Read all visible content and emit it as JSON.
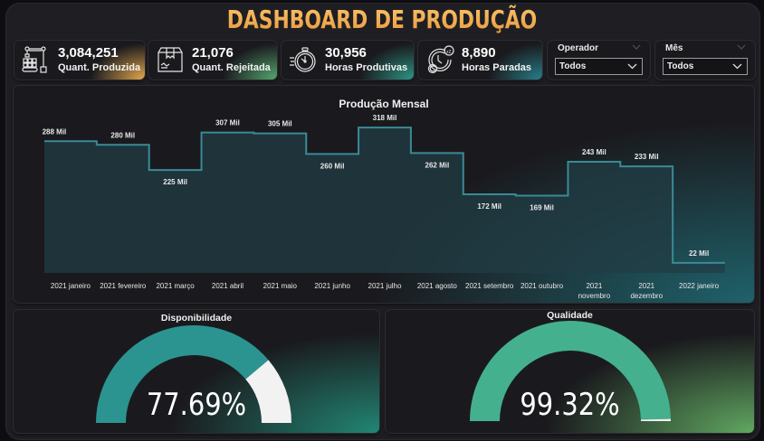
{
  "header": {
    "title": "DASHBOARD DE PRODUÇÃO"
  },
  "kpis": [
    {
      "value": "3,084,251",
      "label": "Quant. Produzida",
      "icon": "robot-arm-icon",
      "accent": "#f0b050"
    },
    {
      "value": "21,076",
      "label": "Quant. Rejeitada",
      "icon": "box-icon",
      "accent": "#5cb87a"
    },
    {
      "value": "30,956",
      "label": "Horas Produtivas",
      "icon": "stopwatch-icon",
      "accent": "#2fa490"
    },
    {
      "value": "8,890",
      "label": "Horas Paradas",
      "icon": "clock-sleep-icon",
      "accent": "#2a8a96"
    }
  ],
  "filters": [
    {
      "label": "Operador",
      "selected": "Todos"
    },
    {
      "label": "Mês",
      "selected": "Todos"
    }
  ],
  "chart_data": {
    "type": "area",
    "title": "Produção Mensal",
    "step": true,
    "categories": [
      "2021 janeiro",
      "2021 fevereiro",
      "2021 março",
      "2021 abril",
      "2021 maio",
      "2021 junho",
      "2021 julho",
      "2021 agosto",
      "2021 setembro",
      "2021 outubro",
      "2021 novembro",
      "2021 dezembro",
      "2022 janeiro"
    ],
    "values": [
      288000,
      280000,
      225000,
      307000,
      305000,
      260000,
      318000,
      262000,
      172000,
      169000,
      243000,
      233000,
      22000
    ],
    "data_labels": [
      "288 Mil",
      "280 Mil",
      "225 Mil",
      "307 Mil",
      "305 Mil",
      "260 Mil",
      "318 Mil",
      "262 Mil",
      "172 Mil",
      "169 Mil",
      "243 Mil",
      "233 Mil",
      "22 Mil"
    ],
    "xlabel": "",
    "ylabel": "",
    "grid": false,
    "legend": "none",
    "line_color": "#3a8a96",
    "fill_color": "#213c44"
  },
  "gauges": [
    {
      "title": "Disponibilidade",
      "value": 77.69,
      "display": "77.69%",
      "fill_color": "#2b9490",
      "rest_color": "#f2f2f2"
    },
    {
      "title": "Qualidade",
      "value": 99.32,
      "display": "99.32%",
      "fill_color": "#45b08e",
      "rest_color": "#f2f2f2"
    }
  ]
}
